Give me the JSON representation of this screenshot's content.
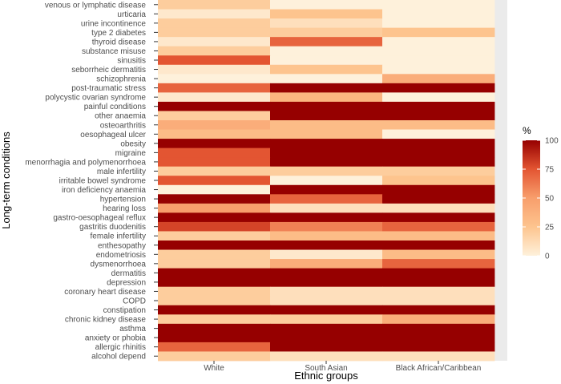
{
  "chart_data": {
    "type": "heatmap",
    "xlabel": "Ethnic groups",
    "ylabel": "Long-term conditions",
    "x": [
      "White",
      "South Asian",
      "Black African/Caribbean"
    ],
    "y": [
      "venous or lymphatic disease",
      "urticaria",
      "urine incontinence",
      "type 2 diabetes",
      "thyroid disease",
      "substance misuse",
      "sinusitis",
      "seborrheic dermatitis",
      "schizophrenia",
      "post-traumatic stress",
      "polycystic ovarian syndrome",
      "painful conditions",
      "other anaemia",
      "osteoarthritis",
      "oesophageal ulcer",
      "obesity",
      "migraine",
      "menorrhagia and polymenorrhoea",
      "male infertility",
      "irritable bowel syndrome",
      "iron deficiency anaemia",
      "hypertension",
      "hearing loss",
      "gastro-oesophageal reflux",
      "gastritis duodenitis",
      "female infertility",
      "enthesopathy",
      "endometriosis",
      "dysmenorrhoea",
      "dermatitis",
      "depression",
      "coronary heart disease",
      "COPD",
      "constipation",
      "chronic kidney disease",
      "asthma",
      "anxiety or phobia",
      "allergic rhinitis",
      "alcohol depend"
    ],
    "values": [
      [
        20,
        0,
        0
      ],
      [
        5,
        25,
        0
      ],
      [
        20,
        10,
        0
      ],
      [
        20,
        20,
        25
      ],
      [
        5,
        70,
        0
      ],
      [
        20,
        0,
        0
      ],
      [
        75,
        0,
        0
      ],
      [
        5,
        25,
        0
      ],
      [
        0,
        0,
        40
      ],
      [
        70,
        100,
        100
      ],
      [
        5,
        35,
        0
      ],
      [
        100,
        100,
        100
      ],
      [
        20,
        100,
        100
      ],
      [
        40,
        30,
        30
      ],
      [
        30,
        30,
        0
      ],
      [
        100,
        100,
        100
      ],
      [
        75,
        100,
        100
      ],
      [
        75,
        100,
        100
      ],
      [
        20,
        20,
        20
      ],
      [
        75,
        0,
        25
      ],
      [
        0,
        100,
        100
      ],
      [
        100,
        70,
        100
      ],
      [
        50,
        10,
        10
      ],
      [
        100,
        100,
        100
      ],
      [
        80,
        60,
        70
      ],
      [
        20,
        30,
        30
      ],
      [
        100,
        100,
        100
      ],
      [
        20,
        5,
        30
      ],
      [
        20,
        40,
        70
      ],
      [
        100,
        100,
        100
      ],
      [
        100,
        100,
        100
      ],
      [
        20,
        10,
        10
      ],
      [
        20,
        10,
        10
      ],
      [
        100,
        100,
        100
      ],
      [
        20,
        20,
        40
      ],
      [
        100,
        100,
        100
      ],
      [
        100,
        100,
        100
      ],
      [
        70,
        100,
        100
      ],
      [
        20,
        10,
        10
      ]
    ],
    "legend": {
      "title": "%",
      "ticks": [
        "100",
        "75",
        "50",
        "25",
        "0"
      ],
      "tick_values": [
        100,
        75,
        50,
        25,
        0
      ],
      "min": 0,
      "max": 100
    },
    "colors": {
      "low": "#fef1db",
      "mid_low": "#fdc48e",
      "mid": "#f89e6c",
      "mid_high": "#e35532",
      "high": "#960000",
      "panel_background": "#ebebeb",
      "text": "#4d4d4d"
    }
  }
}
